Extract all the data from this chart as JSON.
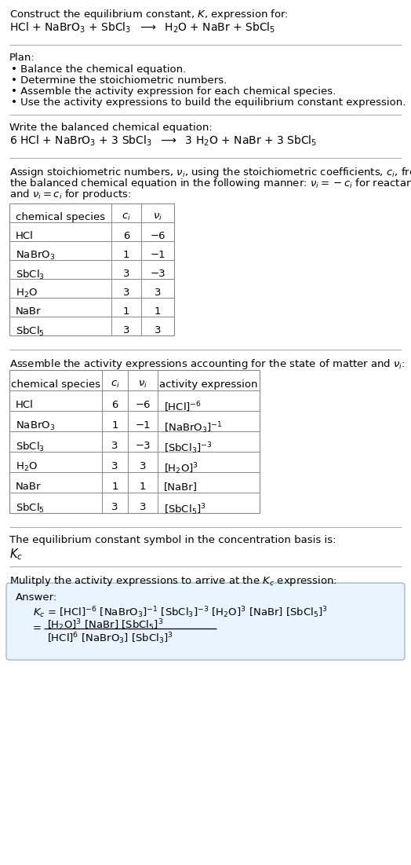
{
  "bg_color": "#ffffff",
  "text_color": "#000000",
  "title_line1": "Construct the equilibrium constant, $K$, expression for:",
  "reaction_unbalanced": "HCl + NaBrO$_3$ + SbCl$_3$  $\\longrightarrow$  H$_2$O + NaBr + SbCl$_5$",
  "plan_header": "Plan:",
  "plan_items": [
    "• Balance the chemical equation.",
    "• Determine the stoichiometric numbers.",
    "• Assemble the activity expression for each chemical species.",
    "• Use the activity expressions to build the equilibrium constant expression."
  ],
  "balanced_header": "Write the balanced chemical equation:",
  "reaction_balanced": "6 HCl + NaBrO$_3$ + 3 SbCl$_3$  $\\longrightarrow$  3 H$_2$O + NaBr + 3 SbCl$_5$",
  "stoich_header_lines": [
    "Assign stoichiometric numbers, $\\nu_i$, using the stoichiometric coefficients, $c_i$, from",
    "the balanced chemical equation in the following manner: $\\nu_i = -c_i$ for reactants",
    "and $\\nu_i = c_i$ for products:"
  ],
  "table1_cols": [
    "chemical species",
    "$c_i$",
    "$\\nu_i$"
  ],
  "table1_rows": [
    [
      "HCl",
      "6",
      "−6"
    ],
    [
      "NaBrO$_3$",
      "1",
      "−1"
    ],
    [
      "SbCl$_3$",
      "3",
      "−3"
    ],
    [
      "H$_2$O",
      "3",
      "3"
    ],
    [
      "NaBr",
      "1",
      "1"
    ],
    [
      "SbCl$_5$",
      "3",
      "3"
    ]
  ],
  "activity_header": "Assemble the activity expressions accounting for the state of matter and $\\nu_i$:",
  "table2_cols": [
    "chemical species",
    "$c_i$",
    "$\\nu_i$",
    "activity expression"
  ],
  "table2_rows": [
    [
      "HCl",
      "6",
      "−6",
      "[HCl]$^{-6}$"
    ],
    [
      "NaBrO$_3$",
      "1",
      "−1",
      "[NaBrO$_3$]$^{-1}$"
    ],
    [
      "SbCl$_3$",
      "3",
      "−3",
      "[SbCl$_3$]$^{-3}$"
    ],
    [
      "H$_2$O",
      "3",
      "3",
      "[H$_2$O]$^3$"
    ],
    [
      "NaBr",
      "1",
      "1",
      "[NaBr]"
    ],
    [
      "SbCl$_5$",
      "3",
      "3",
      "[SbCl$_5$]$^3$"
    ]
  ],
  "kc_header": "The equilibrium constant symbol in the concentration basis is:",
  "kc_symbol": "$K_c$",
  "multiply_header": "Mulitply the activity expressions to arrive at the $K_c$ expression:",
  "answer_label": "Answer:",
  "answer_line1": "$K_c$ = [HCl]$^{-6}$ [NaBrO$_3$]$^{-1}$ [SbCl$_3$]$^{-3}$ [H$_2$O]$^3$ [NaBr] [SbCl$_5$]$^3$",
  "answer_eq_sign": "=",
  "answer_num": "[H$_2$O]$^3$ [NaBr] [SbCl$_5$]$^3$",
  "answer_den": "[HCl]$^6$ [NaBrO$_3$] [SbCl$_3$]$^3$",
  "answer_box_facecolor": "#e8f4ff",
  "answer_box_edgecolor": "#a0b8d0",
  "line_color": "#aaaaaa",
  "table_line_color": "#888888",
  "font_size": 9.5
}
